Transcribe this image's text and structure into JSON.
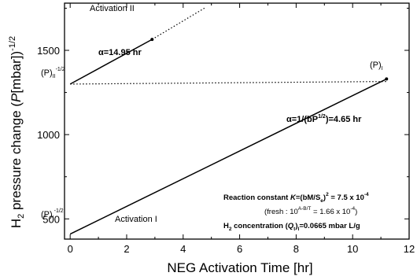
{
  "chart_data": {
    "type": "line",
    "xlabel": "NEG Activation Time [hr]",
    "ylabel": "H2 pressure change (P[mbar])^-1/2",
    "xlim": [
      -0.2,
      12
    ],
    "ylim": [
      380,
      1780
    ],
    "xticks": [
      "0",
      "2",
      "4",
      "6",
      "8",
      "10",
      "12"
    ],
    "yticks": [
      "500",
      "1000",
      "1500"
    ],
    "series": [
      {
        "name": "Activation I",
        "style": "solid",
        "x": [
          0,
          11.2
        ],
        "y": [
          410,
          1330
        ]
      },
      {
        "name": "Activation II",
        "style": "solid",
        "x": [
          0,
          2.9
        ],
        "y": [
          1300,
          1565
        ]
      },
      {
        "name": "Activation II extrapolation",
        "style": "dotted",
        "x": [
          2.9,
          4.8
        ],
        "y": [
          1565,
          1755
        ]
      },
      {
        "name": "(P)I reference",
        "style": "dotted",
        "x": [
          0,
          11.2
        ],
        "y": [
          1300,
          1315
        ]
      }
    ]
  },
  "annotations": {
    "activation_ii": "Activation II",
    "activation_i": "Activation I",
    "alpha_ii": "α=14.95 hr",
    "alpha_i": "α=1/(bP",
    "alpha_i_sup": "1/2",
    "alpha_i_end": ")=4.65 hr",
    "p_ii_base": "(P)",
    "p_ii_sub": "II",
    "p_ii_sup": "-1/2",
    "p_i_base": "(P)",
    "p_i_sub": "I",
    "p_i_sup": "-1/2",
    "p_i_right_base": "(P)",
    "p_i_right_sub": "I",
    "reaction_pre": "Reaction constant ",
    "reaction_K": "K",
    "reaction_mid": "=(bM/S",
    "reaction_sub": "e",
    "reaction_close": ")",
    "reaction_sq": "2",
    "reaction_eq": " = 7.5 x 10",
    "reaction_exp": "-4",
    "fresh_pre": "(fresh : 10",
    "fresh_exp": "A-B/T",
    "fresh_eq": " = 1.66 x 10",
    "fresh_exp2": "-4",
    "fresh_close": ")",
    "h2_pre": "H",
    "h2_sub": "2",
    "h2_mid": " concentration (",
    "h2_Q": "Q",
    "h2_Qsub": "t",
    "h2_close": ")",
    "h2_Qsub2": "I",
    "h2_val": "=0.0665 mbar L/g"
  }
}
